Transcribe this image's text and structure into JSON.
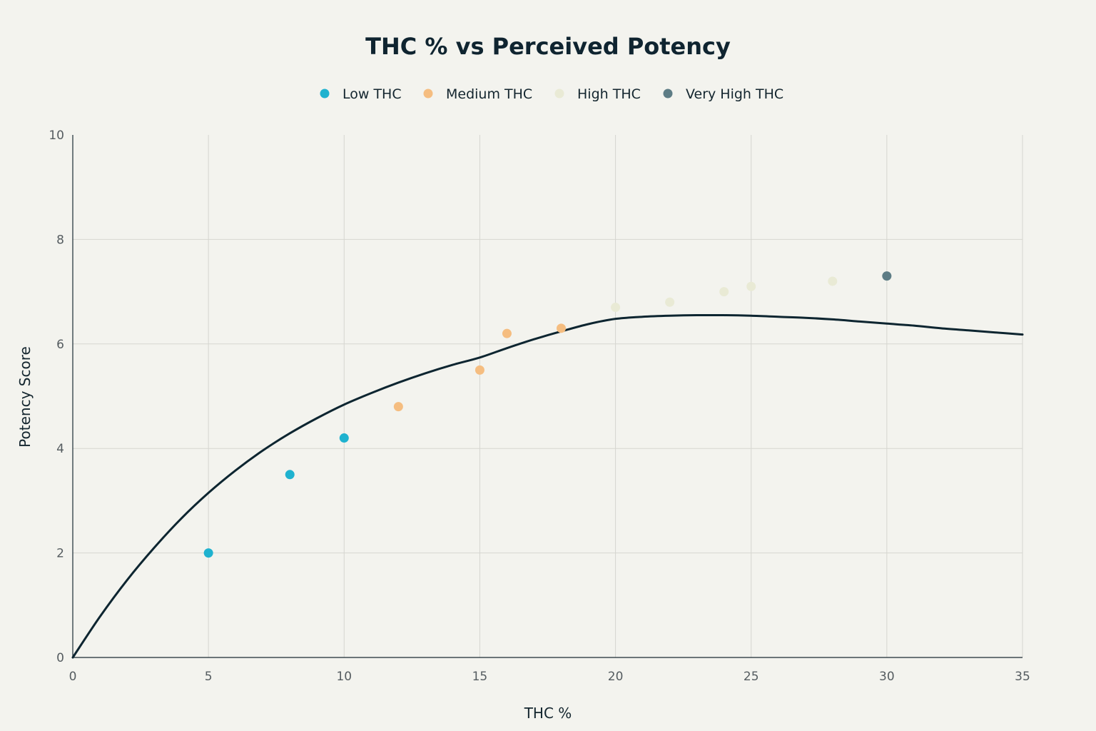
{
  "chart_data": {
    "type": "scatter",
    "title": "THC % vs Perceived Potency",
    "xlabel": "THC %",
    "ylabel": "Potency Score",
    "xlim": [
      0,
      35
    ],
    "ylim": [
      0,
      10
    ],
    "xticks": [
      0,
      5,
      10,
      15,
      20,
      25,
      30,
      35
    ],
    "yticks": [
      0,
      2,
      4,
      6,
      8,
      10
    ],
    "grid": true,
    "legend_position": "top-center",
    "series": [
      {
        "name": "Low THC",
        "color": "#1fb2cf",
        "points": [
          [
            5,
            2.0
          ],
          [
            8,
            3.5
          ],
          [
            10,
            4.2
          ]
        ]
      },
      {
        "name": "Medium THC",
        "color": "#f5bd80",
        "points": [
          [
            12,
            4.8
          ],
          [
            15,
            5.5
          ],
          [
            16,
            6.2
          ],
          [
            18,
            6.3
          ]
        ]
      },
      {
        "name": "High THC",
        "color": "#e9ead5",
        "points": [
          [
            20,
            6.7
          ],
          [
            22,
            6.8
          ],
          [
            24,
            7.0
          ],
          [
            25,
            7.1
          ],
          [
            28,
            7.2
          ]
        ]
      },
      {
        "name": "Very High THC",
        "color": "#5d7c85",
        "points": [
          [
            30,
            7.3
          ]
        ]
      }
    ],
    "trend_line": {
      "color": "#0d2530",
      "points": [
        [
          0,
          0
        ],
        [
          1,
          0.78
        ],
        [
          2,
          1.48
        ],
        [
          3,
          2.1
        ],
        [
          4,
          2.66
        ],
        [
          5,
          3.15
        ],
        [
          6,
          3.58
        ],
        [
          7,
          3.96
        ],
        [
          8,
          4.29
        ],
        [
          9,
          4.58
        ],
        [
          10,
          4.84
        ],
        [
          11,
          5.06
        ],
        [
          12,
          5.26
        ],
        [
          13,
          5.44
        ],
        [
          14,
          5.6
        ],
        [
          15,
          5.74
        ],
        [
          16,
          5.92
        ],
        [
          17,
          6.09
        ],
        [
          18,
          6.24
        ],
        [
          19,
          6.38
        ],
        [
          20,
          6.48
        ],
        [
          21,
          6.52
        ],
        [
          22,
          6.54
        ],
        [
          23,
          6.55
        ],
        [
          24,
          6.55
        ],
        [
          25,
          6.54
        ],
        [
          26,
          6.52
        ],
        [
          27,
          6.5
        ],
        [
          28,
          6.47
        ],
        [
          29,
          6.43
        ],
        [
          30,
          6.39
        ],
        [
          31,
          6.35
        ],
        [
          32,
          6.3
        ],
        [
          33,
          6.26
        ],
        [
          34,
          6.22
        ],
        [
          35,
          6.18
        ]
      ]
    }
  }
}
